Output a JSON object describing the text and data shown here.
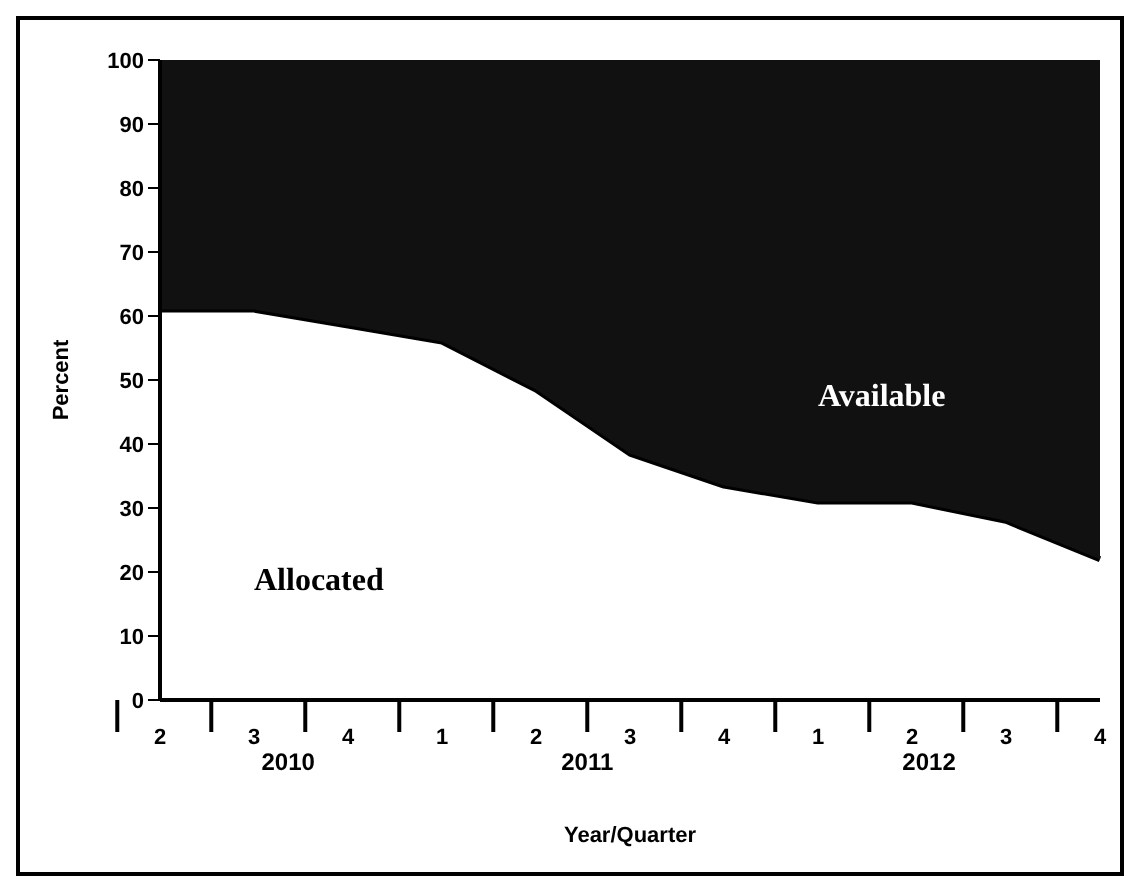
{
  "chart_data": {
    "type": "area",
    "stacked": true,
    "xlabel": "Year/Quarter",
    "ylabel": "Percent",
    "categories": [
      "2",
      "3",
      "4",
      "1",
      "2",
      "3",
      "4",
      "1",
      "2",
      "3",
      "4"
    ],
    "series": [
      {
        "name": "Allocated",
        "color": "#ffffff",
        "values": [
          61,
          61,
          58.5,
          56,
          48.5,
          38.5,
          33.5,
          31,
          31,
          28,
          22
        ]
      },
      {
        "name": "Available",
        "color": "#111111",
        "values": [
          39,
          39,
          41.5,
          44,
          51.5,
          61.5,
          66.5,
          69,
          69,
          72,
          78
        ]
      }
    ],
    "ylim": [
      0,
      100
    ],
    "yticks": [
      0,
      10,
      20,
      30,
      40,
      50,
      60,
      70,
      80,
      90,
      100
    ],
    "annotations": [
      "2010",
      "2011",
      "2012"
    ],
    "grid": false,
    "legend": false
  }
}
